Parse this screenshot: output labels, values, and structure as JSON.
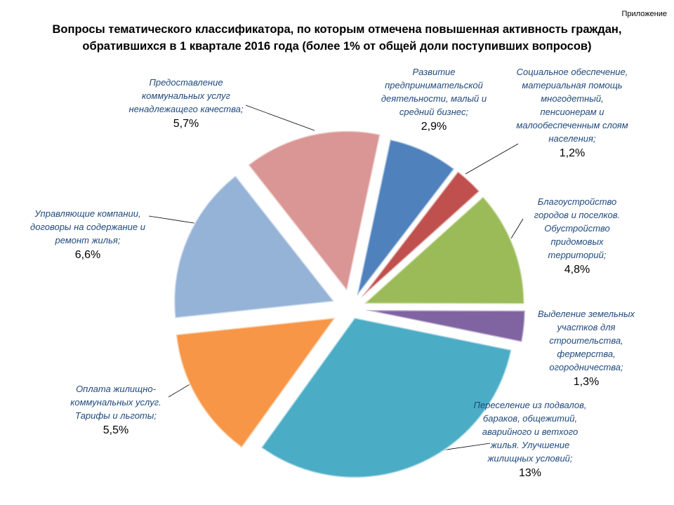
{
  "appendix": "Приложение",
  "chart_data": {
    "type": "pie",
    "title": "Вопросы тематического классификатора, по которым отмечена повышенная активность граждан, обратившихся в 1 квартале 2016 года (более 1% от общей доли поступивших вопросов)",
    "categories": [
      "Развитие предпринимательской деятельности, малый и средний бизнес;",
      "Социальное обеспечение, материальная помощь многодетный, пенсионерам и малообеспеченным слоям населения;",
      "Благоустройство городов и поселков. Обустройство придомовых территорий;",
      "Выделение земельных участков для строительства, фермерства, огородничества;",
      "Переселение из подвалов, бараков, общежитий, аварийного и ветхого жилья. Улучшение жилищных условий;",
      "Оплата жилищно-коммунальных услуг. Тарифы и льготы;",
      "Управляющие компании, договоры на содержание и ремонт жилья;",
      "Предоставление коммунальных услуг ненадлежащего качества;"
    ],
    "values": [
      2.9,
      1.2,
      4.8,
      1.3,
      13,
      5.5,
      6.6,
      5.7
    ],
    "value_labels": [
      "2,9%",
      "1,2%",
      "4,8%",
      "1,3%",
      "13%",
      "5,5%",
      "6,6%",
      "5,7%"
    ],
    "colors": [
      "#4f81bd",
      "#c0504d",
      "#9bbb59",
      "#8064a2",
      "#4bacc6",
      "#f79646",
      "#95b3d7",
      "#d99694"
    ]
  }
}
